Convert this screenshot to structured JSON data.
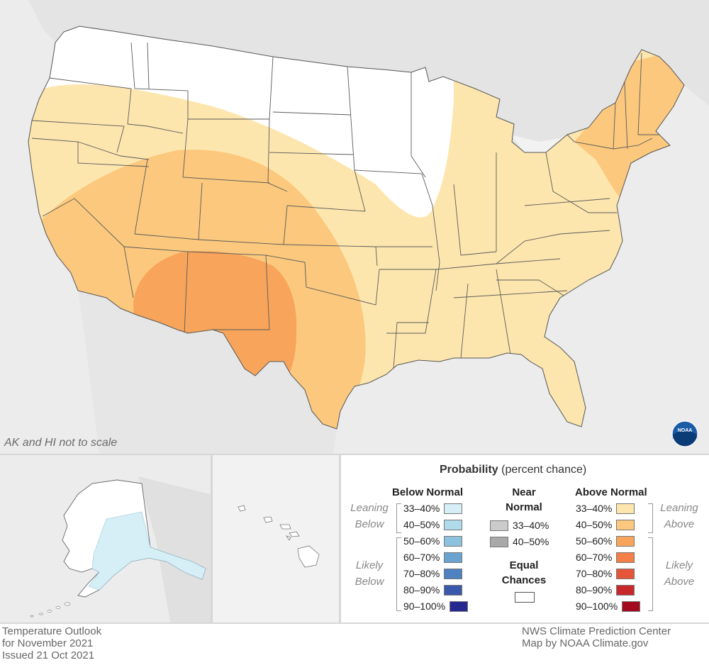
{
  "map_note": "AK and HI not to scale",
  "legend": {
    "title_bold": "Probability",
    "title_rest": " (percent chance)",
    "below": {
      "heading": "Below Normal",
      "leaning": "Leaning Below",
      "likely": "Likely Below",
      "ranges": [
        "33–40%",
        "40–50%",
        "50–60%",
        "60–70%",
        "70–80%",
        "80–90%",
        "90–100%"
      ],
      "colors": [
        "#d6eef6",
        "#b0dbea",
        "#8cc2de",
        "#6ba3d0",
        "#4e82c1",
        "#3a59ab",
        "#27288f"
      ]
    },
    "near": {
      "heading": "Near Normal",
      "ranges": [
        "33–40%",
        "40–50%"
      ],
      "colors": [
        "#cbcbcb",
        "#a9a9a9"
      ],
      "equal_heading": "Equal Chances",
      "equal_color": "#ffffff"
    },
    "above": {
      "heading": "Above Normal",
      "leaning": "Leaning Above",
      "likely": "Likely Above",
      "ranges": [
        "33–40%",
        "40–50%",
        "50–60%",
        "60–70%",
        "70–80%",
        "80–90%",
        "90–100%"
      ],
      "colors": [
        "#fde6ae",
        "#fbc87d",
        "#f8a55b",
        "#f37e47",
        "#e55539",
        "#c7282b",
        "#a30a1f"
      ]
    }
  },
  "footer": {
    "left": [
      "Temperature Outlook",
      "for November 2021",
      "Issued 21 Oct 2021"
    ],
    "right": [
      "NWS Climate Prediction Center",
      "Map by NOAA Climate.gov"
    ]
  },
  "logo_text": "NOAA",
  "colors": {
    "background": "#ececec",
    "land_outside": "#e6e6e6",
    "water": "#f2f2f2",
    "equal_chances": "#ffffff",
    "leaning_above": "#fde6ae",
    "above_40_50": "#fbc87d",
    "above_50_60": "#f8a55b",
    "alaska_leaning_below": "#d6eef6"
  }
}
